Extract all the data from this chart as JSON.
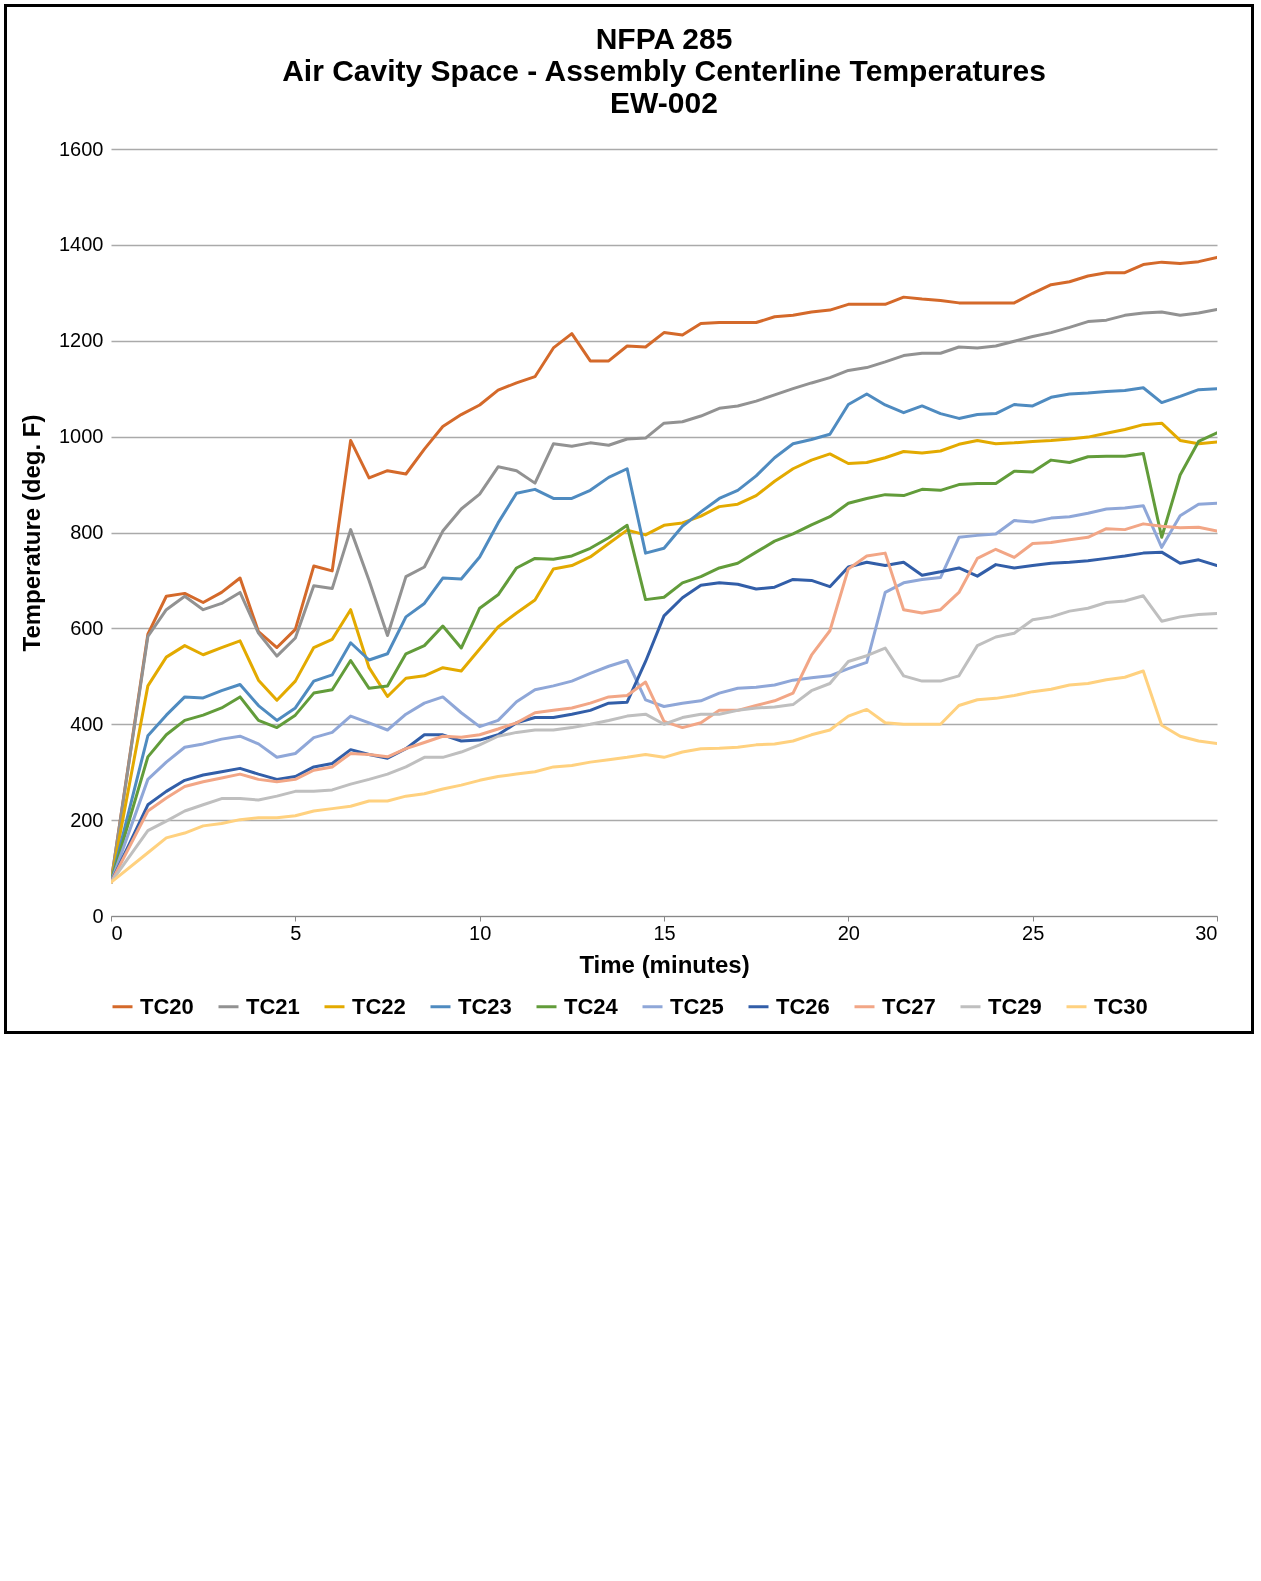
{
  "chart_data": {
    "type": "line",
    "title": "NFPA 285\nAir Cavity Space - Assembly Centerline Temperatures\nEW-002",
    "xlabel": "Time (minutes)",
    "ylabel": "Temperature (deg. F)",
    "xlim": [
      0,
      30
    ],
    "xticks": [
      0,
      5,
      10,
      15,
      20,
      25,
      30
    ],
    "ylim": [
      0,
      1600
    ],
    "yticks": [
      0,
      200,
      400,
      600,
      800,
      1000,
      1200,
      1400,
      1600
    ],
    "grid": "y",
    "legend": "bottom",
    "marker": "none",
    "line_style": "solid",
    "x": [
      0,
      1,
      1.5,
      2,
      2.5,
      3,
      3.5,
      4,
      4.5,
      5,
      5.5,
      6,
      6.5,
      7,
      7.5,
      8,
      8.5,
      9,
      9.5,
      10,
      10.5,
      11,
      11.5,
      12,
      12.5,
      13,
      13.5,
      14,
      14.5,
      15,
      15.5,
      16,
      16.5,
      17,
      17.5,
      18,
      18.5,
      19,
      19.5,
      20,
      20.5,
      21,
      21.5,
      22,
      22.5,
      23,
      23.5,
      24,
      24.5,
      25,
      25.5,
      26,
      26.5,
      27,
      27.5,
      28,
      28.5,
      29,
      29.5,
      30
    ],
    "series": [
      {
        "name": "TC20",
        "color": "#d4692a",
        "values": [
          70,
          588,
          667,
          673,
          654,
          675,
          705,
          593,
          560,
          598,
          730,
          720,
          992,
          914,
          929,
          922,
          974,
          1021,
          1046,
          1066,
          1097,
          1112,
          1125,
          1185,
          1215,
          1158,
          1158,
          1189,
          1187,
          1217,
          1212,
          1236,
          1238,
          1238,
          1238,
          1250,
          1253,
          1260,
          1264,
          1276,
          1276,
          1276,
          1291,
          1287,
          1284,
          1279,
          1279,
          1279,
          1279,
          1299,
          1317,
          1323,
          1335,
          1342,
          1342,
          1359,
          1364,
          1361,
          1365,
          1374
        ]
      },
      {
        "name": "TC21",
        "color": "#929292",
        "values": [
          70,
          583,
          639,
          667,
          639,
          652,
          675,
          590,
          542,
          580,
          689,
          683,
          806,
          700,
          585,
          708,
          728,
          803,
          849,
          880,
          937,
          929,
          903,
          985,
          980,
          987,
          982,
          995,
          997,
          1028,
          1031,
          1043,
          1059,
          1064,
          1074,
          1087,
          1100,
          1112,
          1123,
          1138,
          1144,
          1156,
          1169,
          1174,
          1174,
          1187,
          1185,
          1189,
          1199,
          1209,
          1217,
          1228,
          1240,
          1243,
          1253,
          1258,
          1260,
          1253,
          1258,
          1265
        ]
      },
      {
        "name": "TC22",
        "color": "#e3aa00",
        "values": [
          70,
          480,
          540,
          564,
          545,
          560,
          574,
          492,
          450,
          490,
          560,
          577,
          639,
          518,
          458,
          496,
          501,
          518,
          511,
          557,
          603,
          632,
          659,
          724,
          731,
          749,
          777,
          805,
          795,
          815,
          820,
          834,
          854,
          859,
          877,
          907,
          933,
          951,
          964,
          944,
          946,
          956,
          969,
          966,
          970,
          984,
          992,
          985,
          987,
          990,
          992,
          995,
          999,
          1007,
          1015,
          1025,
          1028,
          992,
          985,
          989
        ]
      },
      {
        "name": "TC23",
        "color": "#4f8bc0",
        "values": [
          70,
          376,
          419,
          457,
          455,
          470,
          483,
          439,
          408,
          434,
          490,
          503,
          570,
          534,
          547,
          624,
          652,
          705,
          703,
          749,
          820,
          882,
          890,
          871,
          871,
          888,
          915,
          933,
          757,
          767,
          813,
          843,
          871,
          888,
          918,
          956,
          985,
          994,
          1005,
          1067,
          1089,
          1066,
          1050,
          1064,
          1048,
          1038,
          1046,
          1048,
          1067,
          1064,
          1082,
          1089,
          1091,
          1094,
          1096,
          1102,
          1071,
          1084,
          1098,
          1100
        ]
      },
      {
        "name": "TC24",
        "color": "#629c3a",
        "values": [
          70,
          332,
          378,
          408,
          419,
          434,
          457,
          408,
          393,
          419,
          465,
          472,
          533,
          475,
          480,
          547,
          564,
          605,
          559,
          642,
          670,
          726,
          746,
          744,
          751,
          767,
          789,
          815,
          660,
          665,
          695,
          708,
          726,
          736,
          759,
          782,
          797,
          816,
          833,
          861,
          871,
          879,
          877,
          890,
          888,
          900,
          902,
          902,
          928,
          926,
          951,
          946,
          958,
          959,
          959,
          965,
          790,
          920,
          990,
          1008
        ]
      },
      {
        "name": "TC25",
        "color": "#8fa7d8",
        "values": [
          70,
          285,
          321,
          352,
          359,
          369,
          375,
          359,
          331,
          339,
          372,
          383,
          417,
          403,
          388,
          421,
          444,
          457,
          424,
          395,
          408,
          447,
          472,
          480,
          490,
          506,
          521,
          533,
          451,
          437,
          444,
          449,
          465,
          475,
          477,
          482,
          492,
          497,
          501,
          516,
          529,
          675,
          695,
          702,
          706,
          790,
          794,
          797,
          825,
          822,
          830,
          833,
          840,
          849,
          851,
          856,
          769,
          835,
          859,
          861
        ]
      },
      {
        "name": "TC26",
        "color": "#325ea8",
        "values": [
          70,
          232,
          260,
          283,
          294,
          301,
          308,
          296,
          285,
          291,
          311,
          318,
          347,
          337,
          329,
          349,
          378,
          378,
          365,
          367,
          378,
          403,
          414,
          414,
          421,
          429,
          444,
          446,
          531,
          626,
          664,
          690,
          695,
          692,
          682,
          686,
          702,
          700,
          687,
          728,
          738,
          731,
          738,
          711,
          718,
          726,
          709,
          733,
          726,
          731,
          736,
          738,
          741,
          746,
          751,
          757,
          759,
          736,
          743,
          731
        ]
      },
      {
        "name": "TC27",
        "color": "#f2a686",
        "values": [
          70,
          219,
          246,
          270,
          280,
          288,
          296,
          285,
          280,
          285,
          304,
          311,
          339,
          337,
          332,
          349,
          362,
          375,
          373,
          378,
          390,
          403,
          424,
          429,
          434,
          444,
          457,
          460,
          488,
          406,
          393,
          403,
          429,
          429,
          439,
          449,
          465,
          544,
          595,
          724,
          751,
          757,
          639,
          632,
          639,
          675,
          746,
          765,
          748,
          777,
          779,
          785,
          790,
          808,
          806,
          818,
          813,
          810,
          811,
          803
        ]
      },
      {
        "name": "TC29",
        "color": "#bfbfbf",
        "values": [
          70,
          178,
          198,
          219,
          232,
          245,
          245,
          242,
          250,
          260,
          260,
          263,
          275,
          285,
          296,
          311,
          331,
          331,
          342,
          357,
          375,
          383,
          388,
          388,
          393,
          400,
          408,
          417,
          421,
          400,
          414,
          421,
          421,
          429,
          434,
          436,
          441,
          470,
          485,
          531,
          543,
          559,
          501,
          490,
          490,
          501,
          564,
          582,
          590,
          618,
          624,
          636,
          642,
          654,
          657,
          668,
          615,
          624,
          629,
          631
        ]
      },
      {
        "name": "TC30",
        "color": "#ffd17f",
        "values": [
          70,
          132,
          163,
          173,
          188,
          193,
          201,
          205,
          205,
          209,
          219,
          224,
          229,
          240,
          240,
          250,
          255,
          265,
          273,
          283,
          291,
          296,
          301,
          311,
          314,
          321,
          326,
          331,
          337,
          331,
          342,
          349,
          350,
          352,
          357,
          359,
          365,
          378,
          388,
          417,
          431,
          403,
          400,
          400,
          400,
          439,
          451,
          454,
          460,
          468,
          473,
          482,
          485,
          493,
          498,
          511,
          398,
          375,
          365,
          360
        ]
      }
    ]
  }
}
